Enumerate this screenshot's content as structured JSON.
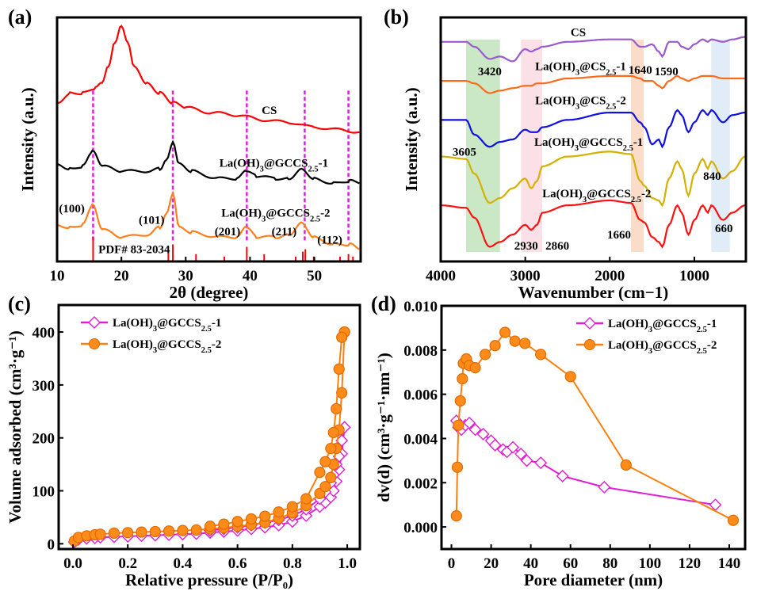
{
  "chart_data": [
    {
      "panel_label": "(a)",
      "type": "line",
      "xlabel": "2θ (degree)",
      "ylabel": "Intensity (a.u.)",
      "xlim": [
        10,
        57.2
      ],
      "ylim": [
        0,
        100
      ],
      "xticks": [
        10,
        20,
        30,
        40,
        50
      ],
      "grid": false,
      "series": [
        {
          "name": "CS",
          "color": "#ff0000",
          "x": [
            10,
            12,
            14,
            16,
            17,
            18,
            19,
            20,
            21,
            22,
            24,
            26,
            28,
            30,
            34,
            38,
            42,
            46,
            50,
            54,
            57
          ],
          "y": [
            65,
            69,
            69,
            71,
            73,
            80,
            90,
            97,
            90,
            80,
            73,
            69,
            65,
            63,
            61,
            60,
            58,
            57,
            55,
            54,
            53
          ]
        },
        {
          "name": "La(OH)3@GCCS2.5-1",
          "color": "#000000",
          "x": [
            10,
            12,
            14,
            15.5,
            17,
            20,
            24,
            26,
            27,
            28,
            29,
            31,
            35,
            38,
            39.5,
            41,
            44,
            46,
            48,
            50,
            53,
            55.5,
            57
          ],
          "y": [
            40,
            38,
            39,
            45,
            39,
            37,
            37,
            38,
            42,
            49,
            40,
            37,
            34,
            34,
            37,
            35,
            34,
            34,
            38,
            34,
            32,
            33,
            32
          ]
        },
        {
          "name": "La(OH)3@GCCS2.5-2",
          "color": "#ff7f1e",
          "x": [
            10,
            12,
            14,
            15.5,
            17,
            20,
            24,
            26,
            27,
            28,
            29,
            31,
            35,
            38,
            39.5,
            41,
            44,
            46,
            48,
            50,
            53,
            55.5,
            57
          ],
          "y": [
            15,
            14,
            15,
            23,
            13,
            10,
            11,
            14,
            20,
            28,
            14,
            12,
            10,
            10,
            14,
            10,
            10,
            11,
            16,
            10,
            7,
            7,
            5
          ]
        }
      ],
      "reference": {
        "label": "PDF# 83-2034",
        "color": "#ff0000",
        "x": [
          15.6,
          27.3,
          28.0,
          31.6,
          36.0,
          39.5,
          42.2,
          47.1,
          48.2,
          48.6,
          49.9,
          54.0,
          55.3,
          56.0
        ],
        "height": [
          10,
          4,
          7,
          3,
          2,
          6,
          3,
          2,
          4,
          5,
          2,
          2,
          3,
          2
        ]
      },
      "guide_lines": {
        "color": "#e020e0",
        "x": [
          15.6,
          28.0,
          39.5,
          48.5,
          55.3
        ]
      },
      "annotations": [
        {
          "text": "CS",
          "x": 43,
          "y": 62
        },
        {
          "text": "La(OH)3@GCCS2.5-1",
          "x": 43.7,
          "y": 40.5
        },
        {
          "text": "La(OH)3@GCCS2.5-2",
          "x": 44,
          "y": 20
        },
        {
          "text": "(100)",
          "x": 12.3,
          "y": 21.7
        },
        {
          "text": "(101)",
          "x": 24.7,
          "y": 17
        },
        {
          "text": "(201)",
          "x": 36.5,
          "y": 12.3
        },
        {
          "text": "(211)",
          "x": 45.3,
          "y": 12.3
        },
        {
          "text": "(112)",
          "x": 52.4,
          "y": 9
        },
        {
          "text": "PDF# 83-2034",
          "x": 22,
          "y": 5
        }
      ]
    },
    {
      "panel_label": "(b)",
      "type": "line",
      "xlabel": "Wavenumber (cm−1)",
      "ylabel": "Intensity (a.u.)",
      "xlim": [
        4000,
        390
      ],
      "ylim": [
        0,
        100
      ],
      "xticks": [
        4000,
        3000,
        2000,
        1000
      ],
      "grid": false,
      "x": [
        4000,
        3700,
        3605,
        3420,
        3300,
        3150,
        3000,
        2930,
        2860,
        2800,
        2500,
        2000,
        1750,
        1640,
        1590,
        1500,
        1420,
        1380,
        1300,
        1200,
        1150,
        1070,
        1000,
        900,
        840,
        800,
        660,
        550,
        400
      ],
      "series": [
        {
          "name": "CS",
          "color": "#9b59d0",
          "y": [
            90,
            90,
            88,
            83,
            84,
            82,
            87,
            86,
            87,
            88,
            90,
            91,
            91,
            88,
            88,
            89,
            86,
            84,
            90,
            90,
            88,
            87,
            89,
            91,
            90,
            91,
            90,
            91,
            92
          ]
        },
        {
          "name": "La(OH)3@CS2.5-1",
          "color": "#ff6a1a",
          "y": [
            74,
            74,
            73,
            69,
            70,
            71,
            72,
            72,
            73,
            73,
            75,
            76,
            76,
            75,
            74,
            74,
            72,
            71,
            74,
            76,
            75,
            74,
            75,
            76,
            76,
            76,
            75,
            75,
            75
          ]
        },
        {
          "name": "La(OH)3@CS2.5-2",
          "color": "#1010e0",
          "y": [
            58,
            58,
            52,
            47,
            49,
            50,
            54,
            53,
            53,
            55,
            58,
            61,
            61,
            57,
            55,
            48,
            50,
            47,
            55,
            62,
            60,
            53,
            57,
            62,
            60,
            62,
            57,
            60,
            61
          ]
        },
        {
          "name": "La(OH)3@GCCS2.5-1",
          "color": "#d4b000",
          "y": [
            43,
            42,
            36,
            24,
            26,
            30,
            34,
            30,
            33,
            39,
            43,
            45,
            44,
            33,
            31,
            26,
            25,
            23,
            34,
            41,
            38,
            27,
            36,
            42,
            38,
            41,
            34,
            37,
            43
          ]
        },
        {
          "name": "La(OH)3@GCCS2.5-2",
          "color": "#ff1010",
          "y": [
            23,
            22,
            18,
            6,
            8,
            11,
            15,
            13,
            15,
            20,
            23,
            25,
            24,
            17,
            16,
            10,
            8,
            6,
            15,
            23,
            20,
            11,
            17,
            23,
            20,
            23,
            17,
            20,
            23
          ]
        }
      ],
      "bands": [
        {
          "from": 3700,
          "to": 3300,
          "color": "#9fd596"
        },
        {
          "from": 3050,
          "to": 2800,
          "color": "#f7c6d6"
        },
        {
          "from": 1750,
          "to": 1600,
          "color": "#f7c09a"
        },
        {
          "from": 800,
          "to": 580,
          "color": "#c6def2"
        }
      ],
      "annotations": [
        {
          "text": "CS",
          "x": 2373,
          "y": 94
        },
        {
          "text": "La(OH)3@CS2.5-1",
          "x": 2345,
          "y": 80
        },
        {
          "text": "La(OH)3@CS2.5-2",
          "x": 2345,
          "y": 66
        },
        {
          "text": "La(OH)3@GCCS2.5-1",
          "x": 2250,
          "y": 49
        },
        {
          "text": "La(OH)3@GCCS2.5-2",
          "x": 2155,
          "y": 28
        },
        {
          "text": "3420",
          "x": 3420,
          "y": 78
        },
        {
          "text": "1640",
          "x": 1640,
          "y": 78.5
        },
        {
          "text": "1590",
          "x": 1440,
          "y": 78
        },
        {
          "text": "3605",
          "x": 3720,
          "y": 45
        },
        {
          "text": "840",
          "x": 790,
          "y": 35
        },
        {
          "text": "2930",
          "x": 2990,
          "y": 6.5
        },
        {
          "text": "2860",
          "x": 2620,
          "y": 6.5
        },
        {
          "text": "1660",
          "x": 1890,
          "y": 11
        },
        {
          "text": "660",
          "x": 650,
          "y": 13.6
        }
      ]
    },
    {
      "panel_label": "(c)",
      "type": "line",
      "xlabel": "Relative pressure (P/P₀)",
      "ylabel": "Volume adsorbed (cm³·g⁻¹)",
      "xlim": [
        -0.052,
        1.046
      ],
      "ylim": [
        -10,
        451
      ],
      "xticks": [
        0.0,
        0.2,
        0.4,
        0.6,
        0.8,
        1.0
      ],
      "yticks": [
        0,
        100,
        200,
        300,
        400
      ],
      "grid": false,
      "legend": "top-left",
      "series": [
        {
          "name": "La(OH)3@GCCS2.5-1",
          "color": "#e020d0",
          "marker": "diamond-open",
          "adsorption": {
            "x": [
              0.005,
              0.02,
              0.05,
              0.08,
              0.1,
              0.15,
              0.2,
              0.25,
              0.3,
              0.35,
              0.4,
              0.45,
              0.5,
              0.55,
              0.6,
              0.65,
              0.7,
              0.75,
              0.8,
              0.85,
              0.9,
              0.92,
              0.94,
              0.95,
              0.96,
              0.97,
              0.98,
              0.99
            ],
            "y": [
              3,
              8,
              10,
              11,
              12,
              13,
              14,
              15,
              16,
              17,
              18,
              19,
              21,
              23,
              25,
              28,
              31,
              35,
              42,
              53,
              70,
              78,
              88,
              100,
              118,
              140,
              170,
              220
            ]
          },
          "desorption": {
            "x": [
              0.99,
              0.98,
              0.97,
              0.96,
              0.95,
              0.94,
              0.92,
              0.9,
              0.85,
              0.8,
              0.75,
              0.7,
              0.65,
              0.6,
              0.55,
              0.5
            ],
            "y": [
              220,
              195,
              165,
              150,
              130,
              115,
              98,
              85,
              65,
              53,
              45,
              40,
              35,
              31,
              28,
              25
            ]
          }
        },
        {
          "name": "La(OH)3@GCCS2.5-2",
          "color": "#ff7f0e",
          "marker": "circle-filled",
          "adsorption": {
            "x": [
              0.005,
              0.02,
              0.05,
              0.08,
              0.1,
              0.15,
              0.2,
              0.25,
              0.3,
              0.35,
              0.4,
              0.45,
              0.5,
              0.55,
              0.6,
              0.65,
              0.7,
              0.75,
              0.8,
              0.85,
              0.9,
              0.92,
              0.94,
              0.95,
              0.96,
              0.97,
              0.98,
              0.99
            ],
            "y": [
              5,
              12,
              15,
              17,
              18,
              20,
              21,
              22,
              23,
              24,
              25,
              26,
              28,
              30,
              33,
              36,
              40,
              48,
              58,
              72,
              95,
              108,
              125,
              150,
              180,
              215,
              285,
              400
            ]
          },
          "desorption": {
            "x": [
              0.99,
              0.98,
              0.97,
              0.96,
              0.95,
              0.94,
              0.92,
              0.9,
              0.85,
              0.8,
              0.75,
              0.7,
              0.65,
              0.6,
              0.55,
              0.5
            ],
            "y": [
              400,
              390,
              330,
              255,
              210,
              180,
              155,
              135,
              85,
              70,
              60,
              52,
              47,
              42,
              37,
              33
            ]
          }
        }
      ]
    },
    {
      "panel_label": "(d)",
      "type": "line",
      "xlabel": "Pore diameter (nm)",
      "ylabel": "dv(d) (cm³·g⁻¹·nm⁻¹)",
      "xlim": [
        -5,
        148
      ],
      "ylim": [
        -0.001,
        0.01
      ],
      "xticks": [
        0,
        20,
        40,
        60,
        80,
        100,
        120,
        140
      ],
      "yticks": [
        0.0,
        0.002,
        0.004,
        0.006,
        0.008,
        0.01
      ],
      "grid": false,
      "legend": "top-right",
      "series": [
        {
          "name": "La(OH)3@GCCS2.5-1",
          "color": "#e020d0",
          "marker": "diamond-open",
          "x": [
            2.5,
            3.5,
            5,
            7,
            9,
            12,
            16,
            20,
            22,
            26,
            28,
            31,
            35,
            38,
            45,
            56,
            77,
            133
          ],
          "y": [
            0.0048,
            0.0045,
            0.0044,
            0.0046,
            0.0047,
            0.0044,
            0.0042,
            0.0039,
            0.0037,
            0.0035,
            0.0034,
            0.0036,
            0.0033,
            0.003,
            0.0029,
            0.0023,
            0.0018,
            0.001
          ]
        },
        {
          "name": "La(OH)3@GCCS2.5-2",
          "color": "#ff7f0e",
          "marker": "circle-filled",
          "x": [
            2.5,
            3,
            3.5,
            4.5,
            5.5,
            6,
            7.5,
            9,
            12,
            17,
            22,
            27,
            32,
            37,
            45,
            60,
            88,
            142
          ],
          "y": [
            0.0005,
            0.0027,
            0.0046,
            0.0057,
            0.0067,
            0.0074,
            0.0076,
            0.0073,
            0.0072,
            0.0078,
            0.0082,
            0.0088,
            0.0084,
            0.0083,
            0.0078,
            0.0068,
            0.0028,
            0.0003
          ]
        }
      ]
    }
  ]
}
